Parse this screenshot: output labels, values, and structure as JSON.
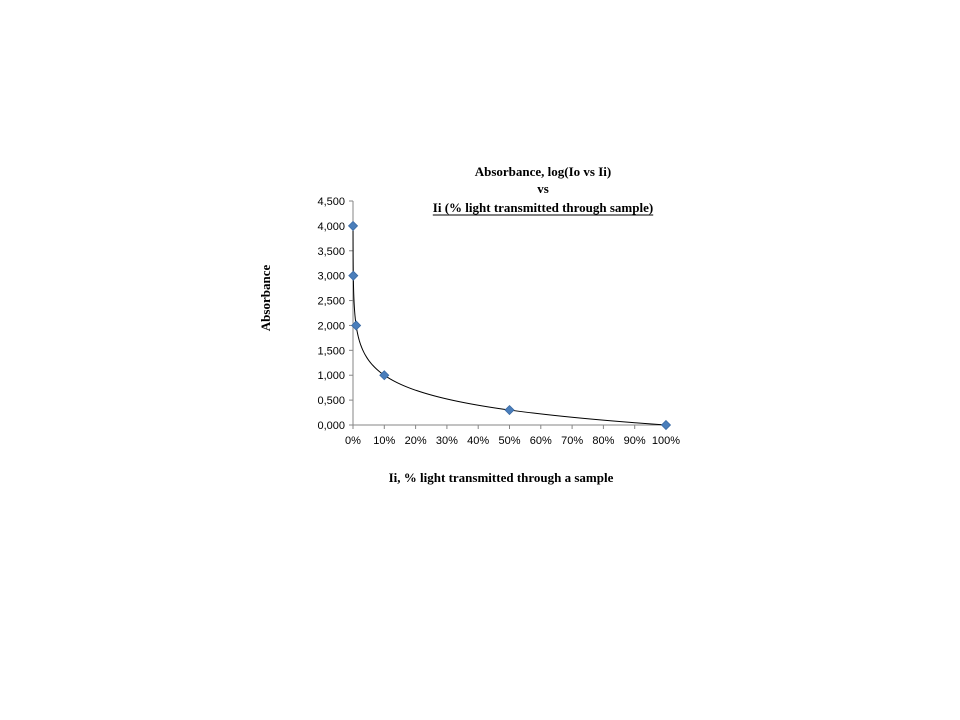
{
  "chart_data": {
    "type": "scatter",
    "title": "Absorbance,  log(Io vs Ii)",
    "subtitle_line2": "vs",
    "subtitle_line3": "Ii (% light transmitted  through sample)",
    "xlabel": "Ii, % light transmitted  through a sample",
    "ylabel": "Absorbance",
    "xlim": [
      0,
      1
    ],
    "ylim": [
      0,
      4.5
    ],
    "x_ticks": [
      "0%",
      "10%",
      "20%",
      "30%",
      "40%",
      "50%",
      "60%",
      "70%",
      "80%",
      "90%",
      "100%"
    ],
    "y_ticks": [
      "0,000",
      "0,500",
      "1,000",
      "1,500",
      "2,000",
      "2,500",
      "3,000",
      "3,500",
      "4,000",
      "4,500"
    ],
    "series": [
      {
        "x": [
          0.0001,
          0.001,
          0.01,
          0.1,
          0.5,
          1.0
        ],
        "y": [
          4.0,
          3.0,
          2.0,
          1.0,
          0.301,
          0.0
        ]
      }
    ],
    "trendline": "logarithmic",
    "grid": false,
    "legend": "none",
    "colors": {
      "marker": "#4a7ebb",
      "marker_edge": "#3a6aa4",
      "trendline": "#000000",
      "axis": "#868686"
    }
  }
}
